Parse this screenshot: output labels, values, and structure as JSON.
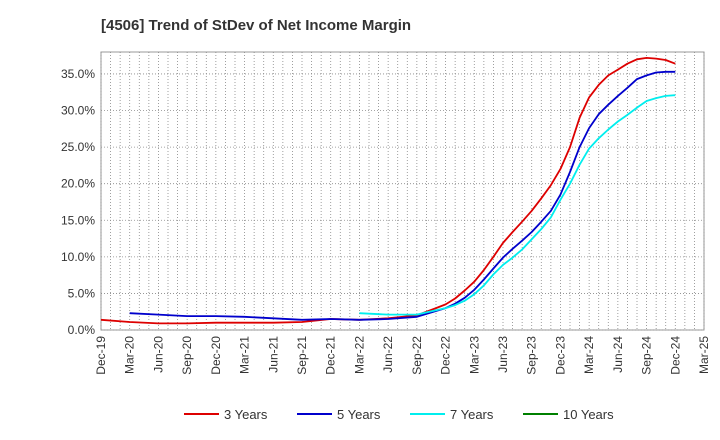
{
  "chart_data": {
    "type": "line",
    "title": "[4506]  Trend of StDev of Net Income Margin",
    "xlabel": "",
    "ylabel": "",
    "x_tick_labels": [
      "Dec-19",
      "Mar-20",
      "Jun-20",
      "Sep-20",
      "Dec-20",
      "Mar-21",
      "Jun-21",
      "Sep-21",
      "Dec-21",
      "Mar-22",
      "Jun-22",
      "Sep-22",
      "Dec-22",
      "Mar-23",
      "Jun-23",
      "Sep-23",
      "Dec-23",
      "Mar-24",
      "Jun-24",
      "Sep-24",
      "Dec-24",
      "Mar-25"
    ],
    "y_tick_labels": [
      "0.0%",
      "5.0%",
      "10.0%",
      "15.0%",
      "20.0%",
      "25.0%",
      "30.0%",
      "35.0%"
    ],
    "ylim": [
      0,
      38
    ],
    "grid": true,
    "legend_position": "bottom",
    "series": [
      {
        "name": "3 Years",
        "color": "#dd0000",
        "x": [
          "Dec-19",
          "Mar-20",
          "Jun-20",
          "Sep-20",
          "Dec-20",
          "Mar-21",
          "Jun-21",
          "Sep-21",
          "Dec-21",
          "Mar-22",
          "Jun-22",
          "Sep-22",
          "Oct-22",
          "Nov-22",
          "Dec-22",
          "Jan-23",
          "Feb-23",
          "Mar-23",
          "Apr-23",
          "May-23",
          "Jun-23",
          "Jul-23",
          "Aug-23",
          "Sep-23",
          "Oct-23",
          "Nov-23",
          "Dec-23",
          "Jan-24",
          "Feb-24",
          "Mar-24",
          "Apr-24",
          "May-24",
          "Jun-24",
          "Jul-24",
          "Aug-24",
          "Sep-24",
          "Oct-24",
          "Nov-24",
          "Dec-24"
        ],
        "values": [
          1.4,
          1.1,
          0.9,
          0.9,
          1.0,
          1.0,
          1.0,
          1.1,
          1.5,
          1.4,
          1.6,
          2.0,
          2.5,
          3.0,
          3.5,
          4.3,
          5.4,
          6.6,
          8.2,
          10.0,
          11.9,
          13.4,
          14.8,
          16.3,
          18.0,
          19.8,
          22.0,
          25.0,
          29.0,
          31.8,
          33.5,
          34.8,
          35.6,
          36.4,
          37.0,
          37.2,
          37.1,
          36.9,
          36.4
        ]
      },
      {
        "name": "5 Years",
        "color": "#0000cc",
        "x": [
          "Mar-20",
          "Jun-20",
          "Sep-20",
          "Dec-20",
          "Mar-21",
          "Jun-21",
          "Sep-21",
          "Dec-21",
          "Mar-22",
          "Jun-22",
          "Sep-22",
          "Oct-22",
          "Nov-22",
          "Dec-22",
          "Jan-23",
          "Feb-23",
          "Mar-23",
          "Apr-23",
          "May-23",
          "Jun-23",
          "Jul-23",
          "Aug-23",
          "Sep-23",
          "Oct-23",
          "Nov-23",
          "Dec-23",
          "Jan-24",
          "Feb-24",
          "Mar-24",
          "Apr-24",
          "May-24",
          "Jun-24",
          "Jul-24",
          "Aug-24",
          "Sep-24",
          "Oct-24",
          "Nov-24",
          "Dec-24"
        ],
        "values": [
          2.3,
          2.1,
          1.9,
          1.9,
          1.8,
          1.6,
          1.4,
          1.5,
          1.4,
          1.5,
          1.8,
          2.2,
          2.6,
          3.0,
          3.6,
          4.4,
          5.5,
          6.9,
          8.4,
          9.9,
          11.1,
          12.2,
          13.4,
          14.8,
          16.3,
          18.5,
          21.6,
          25.0,
          27.6,
          29.5,
          30.8,
          32.0,
          33.1,
          34.3,
          34.8,
          35.2,
          35.3,
          35.3
        ]
      },
      {
        "name": "7 Years",
        "color": "#00eeee",
        "x": [
          "Mar-22",
          "Jun-22",
          "Sep-22",
          "Oct-22",
          "Nov-22",
          "Dec-22",
          "Jan-23",
          "Feb-23",
          "Mar-23",
          "Apr-23",
          "May-23",
          "Jun-23",
          "Jul-23",
          "Aug-23",
          "Sep-23",
          "Oct-23",
          "Nov-23",
          "Dec-23",
          "Jan-24",
          "Feb-24",
          "Mar-24",
          "Apr-24",
          "May-24",
          "Jun-24",
          "Jul-24",
          "Aug-24",
          "Sep-24",
          "Oct-24",
          "Nov-24",
          "Dec-24"
        ],
        "values": [
          2.3,
          2.1,
          2.1,
          2.4,
          2.7,
          3.0,
          3.4,
          4.0,
          4.9,
          6.1,
          7.6,
          8.9,
          9.9,
          11.0,
          12.4,
          13.8,
          15.4,
          17.8,
          20.0,
          22.6,
          24.8,
          26.2,
          27.4,
          28.5,
          29.4,
          30.4,
          31.3,
          31.7,
          32.0,
          32.1
        ]
      },
      {
        "name": "10 Years",
        "color": "#008000",
        "x": [],
        "values": []
      }
    ]
  }
}
